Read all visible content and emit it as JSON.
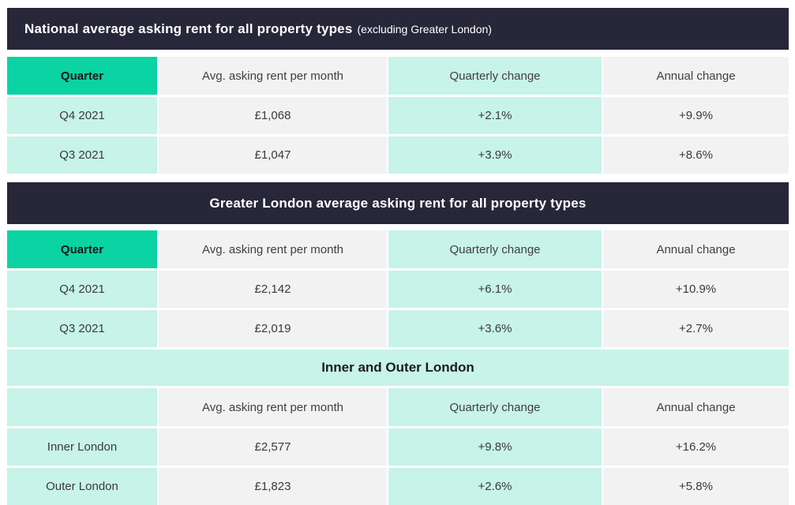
{
  "chart_data": [
    {
      "type": "table",
      "title": "National average asking rent for all property types (excluding Greater London)",
      "title_main": "National average asking rent for all property types",
      "title_note": "(excluding Greater London)",
      "columns": [
        "Quarter",
        "Avg. asking rent per month",
        "Quarterly change",
        "Annual change"
      ],
      "rows": [
        [
          "Q4 2021",
          "£1,068",
          "+2.1%",
          "+9.9%"
        ],
        [
          "Q3 2021",
          "£1,047",
          "+3.9%",
          "+8.6%"
        ]
      ]
    },
    {
      "type": "table",
      "title": "Greater London average asking rent for all property types",
      "columns": [
        "Quarter",
        "Avg. asking rent per month",
        "Quarterly change",
        "Annual change"
      ],
      "rows": [
        [
          "Q4 2021",
          "£2,142",
          "+6.1%",
          "+10.9%"
        ],
        [
          "Q3 2021",
          "£2,019",
          "+3.6%",
          "+2.7%"
        ]
      ]
    },
    {
      "type": "table",
      "title": "Inner and Outer London",
      "columns": [
        "",
        "Avg. asking rent per month",
        "Quarterly change",
        "Annual change"
      ],
      "rows": [
        [
          "Inner London",
          "£2,577",
          "+9.8%",
          "+16.2%"
        ],
        [
          "Outer London",
          "£1,823",
          "+2.6%",
          "+5.8%"
        ]
      ]
    }
  ],
  "colors": {
    "dark_header_bg": "#282739",
    "accent_green": "#0bd3a3",
    "mint": "#c7f3e8",
    "light_gray": "#f2f2f2",
    "title_text": "#ffffff",
    "cell_text": "#3a3a3a"
  }
}
